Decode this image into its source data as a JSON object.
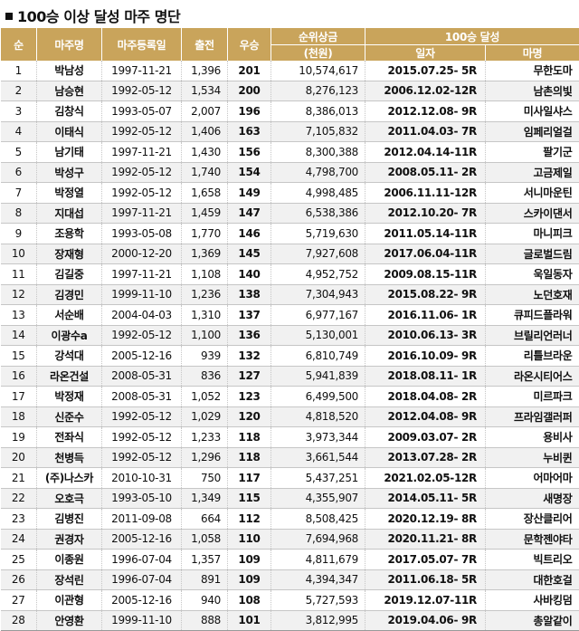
{
  "title": "100승 이상 달성 마주 명단",
  "headers": {
    "rank": "순",
    "owner": "마주명",
    "reg_date": "마주등록일",
    "starts": "출전",
    "wins": "우승",
    "prize_line1": "순위상금",
    "prize_line2": "(천원)",
    "achievement": "100승 달성",
    "date": "일자",
    "horse": "마명"
  },
  "rows": [
    {
      "rank": "1",
      "owner": "박남성",
      "reg": "1997-11-21",
      "starts": "1,396",
      "wins": "201",
      "prize": "10,574,617",
      "date": "2015.07.25- 5R",
      "horse": "무한도마"
    },
    {
      "rank": "2",
      "owner": "남승현",
      "reg": "1992-05-12",
      "starts": "1,534",
      "wins": "200",
      "prize": "8,276,123",
      "date": "2006.12.02-12R",
      "horse": "남촌의빛"
    },
    {
      "rank": "3",
      "owner": "김창식",
      "reg": "1993-05-07",
      "starts": "2,007",
      "wins": "196",
      "prize": "8,386,013",
      "date": "2012.12.08- 9R",
      "horse": "미사일샤스"
    },
    {
      "rank": "4",
      "owner": "이태식",
      "reg": "1992-05-12",
      "starts": "1,406",
      "wins": "163",
      "prize": "7,105,832",
      "date": "2011.04.03- 7R",
      "horse": "임페리얼걸"
    },
    {
      "rank": "5",
      "owner": "남기태",
      "reg": "1997-11-21",
      "starts": "1,430",
      "wins": "156",
      "prize": "8,300,388",
      "date": "2012.04.14-11R",
      "horse": "팔기군"
    },
    {
      "rank": "6",
      "owner": "박성구",
      "reg": "1992-05-12",
      "starts": "1,740",
      "wins": "154",
      "prize": "4,798,700",
      "date": "2008.05.11- 2R",
      "horse": "고금제일"
    },
    {
      "rank": "7",
      "owner": "박정열",
      "reg": "1992-05-12",
      "starts": "1,658",
      "wins": "149",
      "prize": "4,998,485",
      "date": "2006.11.11-12R",
      "horse": "서니마운틴"
    },
    {
      "rank": "8",
      "owner": "지대섭",
      "reg": "1997-11-21",
      "starts": "1,459",
      "wins": "147",
      "prize": "6,538,386",
      "date": "2012.10.20- 7R",
      "horse": "스카이댄서"
    },
    {
      "rank": "9",
      "owner": "조용학",
      "reg": "1993-05-08",
      "starts": "1,770",
      "wins": "146",
      "prize": "5,719,630",
      "date": "2011.05.14-11R",
      "horse": "마니피크"
    },
    {
      "rank": "10",
      "owner": "장재형",
      "reg": "2000-12-20",
      "starts": "1,369",
      "wins": "145",
      "prize": "7,927,608",
      "date": "2017.06.04-11R",
      "horse": "글로벌드림"
    },
    {
      "rank": "11",
      "owner": "김길중",
      "reg": "1997-11-21",
      "starts": "1,108",
      "wins": "140",
      "prize": "4,952,752",
      "date": "2009.08.15-11R",
      "horse": "욱일동자"
    },
    {
      "rank": "12",
      "owner": "김경민",
      "reg": "1999-11-10",
      "starts": "1,236",
      "wins": "138",
      "prize": "7,304,943",
      "date": "2015.08.22- 9R",
      "horse": "노던호재"
    },
    {
      "rank": "13",
      "owner": "서순배",
      "reg": "2004-04-03",
      "starts": "1,310",
      "wins": "137",
      "prize": "6,977,167",
      "date": "2016.11.06- 1R",
      "horse": "큐피드플라워"
    },
    {
      "rank": "14",
      "owner": "이광수a",
      "reg": "1992-05-12",
      "starts": "1,100",
      "wins": "136",
      "prize": "5,130,001",
      "date": "2010.06.13- 3R",
      "horse": "브릴리언러너"
    },
    {
      "rank": "15",
      "owner": "강석대",
      "reg": "2005-12-16",
      "starts": "939",
      "wins": "132",
      "prize": "6,810,749",
      "date": "2016.10.09- 9R",
      "horse": "리틀브라운"
    },
    {
      "rank": "16",
      "owner": "라온건설",
      "reg": "2008-05-31",
      "starts": "836",
      "wins": "127",
      "prize": "5,941,839",
      "date": "2018.08.11- 1R",
      "horse": "라온시티어스"
    },
    {
      "rank": "17",
      "owner": "박정재",
      "reg": "2008-05-31",
      "starts": "1,052",
      "wins": "123",
      "prize": "6,499,500",
      "date": "2018.04.08- 2R",
      "horse": "미르파크"
    },
    {
      "rank": "18",
      "owner": "신준수",
      "reg": "1992-05-12",
      "starts": "1,029",
      "wins": "120",
      "prize": "4,818,520",
      "date": "2012.04.08- 9R",
      "horse": "프라임갤러퍼"
    },
    {
      "rank": "19",
      "owner": "전좌식",
      "reg": "1992-05-12",
      "starts": "1,233",
      "wins": "118",
      "prize": "3,973,344",
      "date": "2009.03.07- 2R",
      "horse": "용비사"
    },
    {
      "rank": "20",
      "owner": "천병득",
      "reg": "1992-05-12",
      "starts": "1,296",
      "wins": "118",
      "prize": "3,661,544",
      "date": "2013.07.28- 2R",
      "horse": "누비퀸"
    },
    {
      "rank": "21",
      "owner": "(주)나스카",
      "reg": "2010-10-31",
      "starts": "750",
      "wins": "117",
      "prize": "5,437,251",
      "date": "2021.02.05-12R",
      "horse": "어마어마"
    },
    {
      "rank": "22",
      "owner": "오호극",
      "reg": "1993-05-10",
      "starts": "1,349",
      "wins": "115",
      "prize": "4,355,907",
      "date": "2014.05.11- 5R",
      "horse": "새명장"
    },
    {
      "rank": "23",
      "owner": "김병진",
      "reg": "2011-09-08",
      "starts": "664",
      "wins": "112",
      "prize": "8,508,425",
      "date": "2020.12.19- 8R",
      "horse": "장산클리어"
    },
    {
      "rank": "24",
      "owner": "권경자",
      "reg": "2005-12-16",
      "starts": "1,058",
      "wins": "110",
      "prize": "7,694,968",
      "date": "2020.11.21- 8R",
      "horse": "문학젠야타"
    },
    {
      "rank": "25",
      "owner": "이종원",
      "reg": "1996-07-04",
      "starts": "1,357",
      "wins": "109",
      "prize": "4,811,679",
      "date": "2017.05.07- 7R",
      "horse": "빅트리오"
    },
    {
      "rank": "26",
      "owner": "장석린",
      "reg": "1996-07-04",
      "starts": "891",
      "wins": "109",
      "prize": "4,394,347",
      "date": "2011.06.18- 5R",
      "horse": "대한호걸"
    },
    {
      "rank": "27",
      "owner": "이관형",
      "reg": "2005-12-16",
      "starts": "940",
      "wins": "108",
      "prize": "5,727,593",
      "date": "2019.12.07-11R",
      "horse": "사바킹덤"
    },
    {
      "rank": "28",
      "owner": "안영환",
      "reg": "1999-11-10",
      "starts": "888",
      "wins": "101",
      "prize": "3,812,995",
      "date": "2019.04.06- 9R",
      "horse": "총알같이"
    }
  ]
}
